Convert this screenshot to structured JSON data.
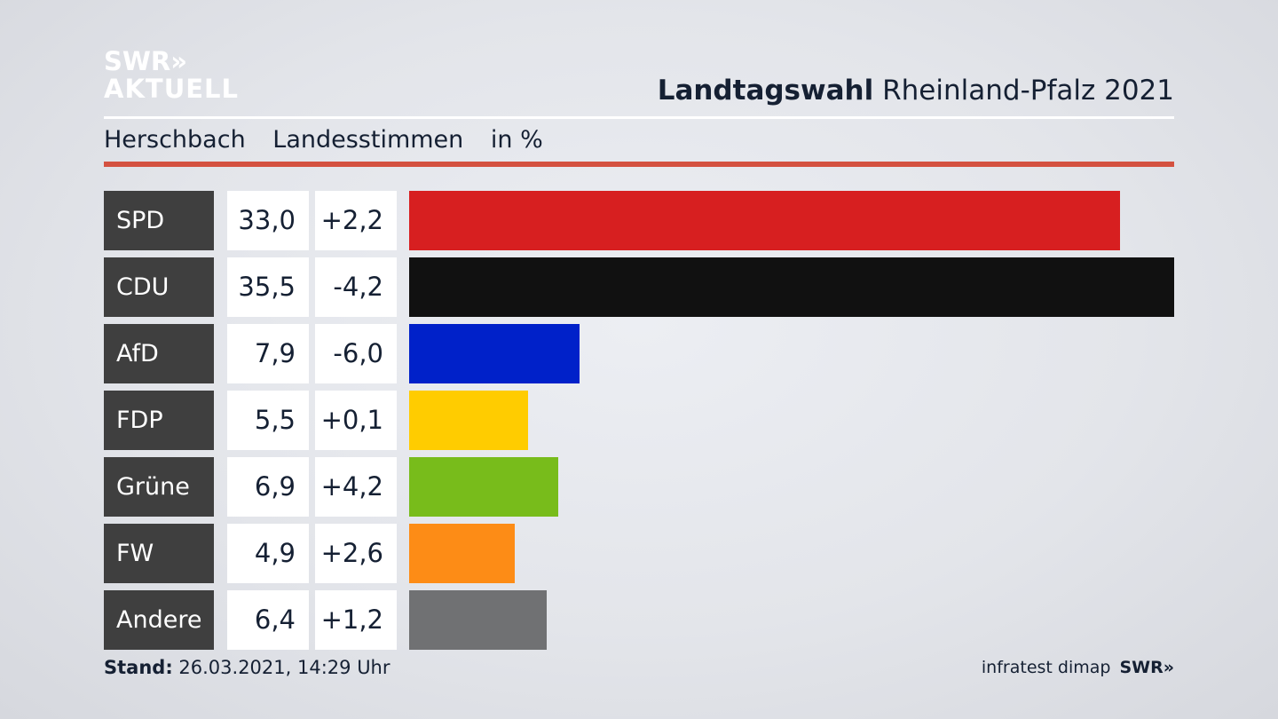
{
  "logo": {
    "line1": "SWR»",
    "line2": "AKTUELL"
  },
  "title": {
    "bold": "Landtagswahl",
    "rest": " Rheinland-Pfalz 2021"
  },
  "subtitle": {
    "place": "Herschbach",
    "kind": "Landesstimmen",
    "unit": "in %"
  },
  "footer": {
    "label": "Stand:",
    "value": "26.03.2021, 14:29 Uhr"
  },
  "source": {
    "name": "infratest dimap",
    "brand": "SWR»"
  },
  "colors": {
    "accent_rule": "#d45140",
    "party_label_bg": "#3f3f3f"
  },
  "chart_data": {
    "type": "bar",
    "orientation": "horizontal",
    "categories": [
      "SPD",
      "CDU",
      "AfD",
      "FDP",
      "Grüne",
      "FW",
      "Andere"
    ],
    "values": [
      33.0,
      35.5,
      7.9,
      5.5,
      6.9,
      4.9,
      6.4
    ],
    "value_labels": [
      "33,0",
      "35,5",
      "7,9",
      "5,5",
      "6,9",
      "4,9",
      "6,4"
    ],
    "changes": [
      2.2,
      -4.2,
      -6.0,
      0.1,
      4.2,
      2.6,
      1.2
    ],
    "change_labels": [
      "+2,2",
      "-4,2",
      "-6,0",
      "+0,1",
      "+4,2",
      "+2,6",
      "+1,2"
    ],
    "colors": [
      "#d71f20",
      "#111111",
      "#0021c9",
      "#ffcc00",
      "#78bc1b",
      "#fd8c16",
      "#707173"
    ],
    "xlim": [
      0,
      35.5
    ],
    "grid": false
  }
}
